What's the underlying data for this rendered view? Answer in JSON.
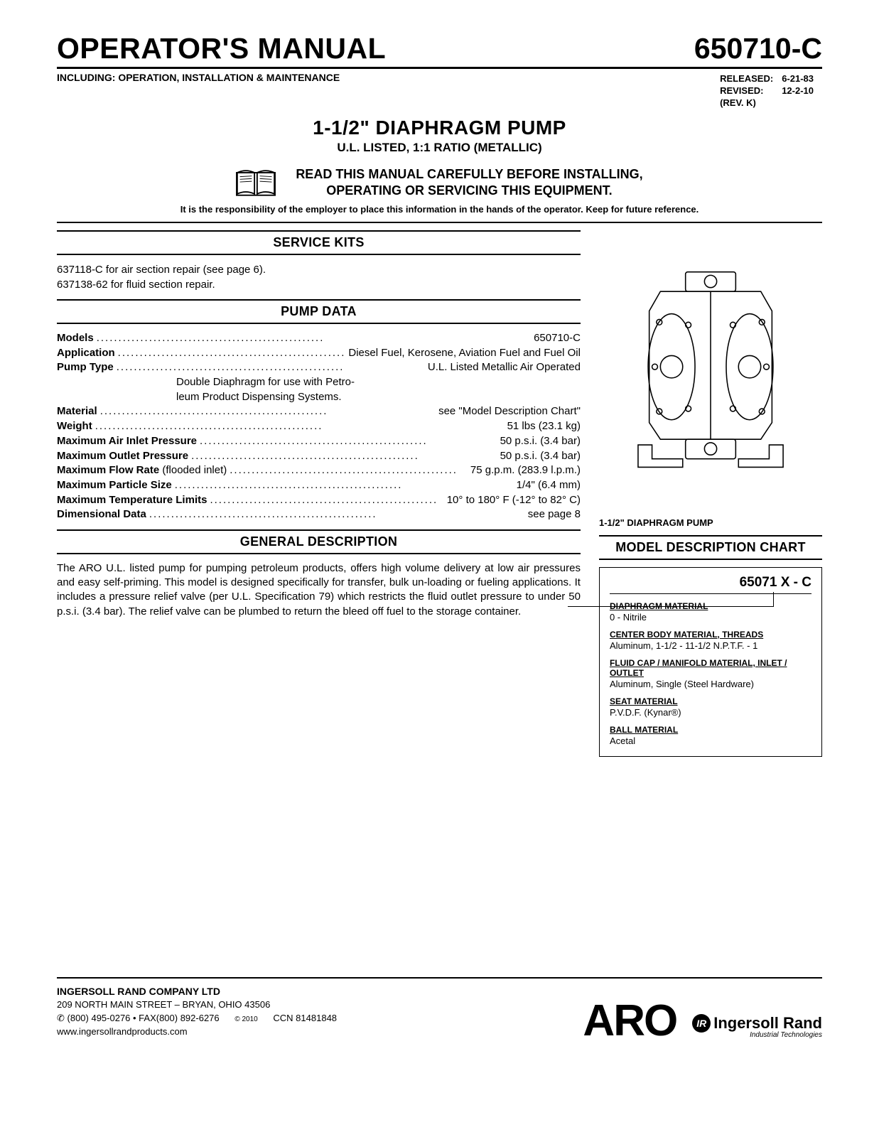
{
  "header": {
    "title": "OPERATOR'S MANUAL",
    "model": "650710-C",
    "subtitle": "INCLUDING: OPERATION, INSTALLATION & MAINTENANCE",
    "released_label": "RELEASED:",
    "released_date": "6-21-83",
    "revised_label": "REVISED:",
    "revised_date": "12-2-10",
    "rev_label": "(REV. K)",
    "product_title": "1-1/2\" DIAPHRAGM PUMP",
    "product_sub": "U.L. LISTED, 1:1 RATIO (METALLIC)",
    "warn_line1": "READ THIS MANUAL CAREFULLY BEFORE INSTALLING,",
    "warn_line2": "OPERATING OR SERVICING THIS EQUIPMENT.",
    "responsibility": "It is the responsibility of the employer to place this information in the hands of the operator. Keep for future reference."
  },
  "service_kits": {
    "heading": "SERVICE KITS",
    "line1": "637118-C for air section repair (see page 6).",
    "line2": "637138-62 for fluid section repair."
  },
  "pump_data": {
    "heading": "PUMP DATA",
    "rows": [
      {
        "label": "Models",
        "value": "650710-C"
      },
      {
        "label": "Application",
        "value": "Diesel Fuel, Kerosene, Aviation Fuel and Fuel Oil"
      },
      {
        "label": "Pump Type",
        "value": "U.L. Listed Metallic Air Operated"
      }
    ],
    "pump_type_cont1": "Double Diaphragm for use with Petro-",
    "pump_type_cont2": "leum Product Dispensing Systems.",
    "rows2": [
      {
        "label": "Material",
        "value": "see \"Model Description Chart\""
      },
      {
        "label": "Weight",
        "value": "51 lbs (23.1 kg)"
      },
      {
        "label": "Maximum Air Inlet Pressure",
        "value": "50 p.s.i. (3.4 bar)"
      },
      {
        "label": "Maximum Outlet Pressure",
        "value": "50 p.s.i. (3.4 bar)"
      },
      {
        "label": "Maximum Flow Rate (flooded inlet)",
        "value": "75 g.p.m. (283.9 l.p.m.)"
      },
      {
        "label": "Maximum Particle Size",
        "value": "1/4\" (6.4 mm)"
      },
      {
        "label": "Maximum Temperature Limits",
        "value": "10° to 180° F (-12° to 82° C)"
      },
      {
        "label": "Dimensional Data",
        "value": "see page 8"
      }
    ],
    "flooded_note": " (flooded inlet)"
  },
  "general": {
    "heading": "GENERAL DESCRIPTION",
    "text": "The ARO U.L. listed pump for pumping petroleum products, offers high volume delivery at low air pressures and easy self-priming. This model is designed specifically for transfer, bulk un-loading or fueling applications. It includes a pressure relief valve (per U.L. Specification 79) which restricts the fluid outlet pressure to under 50 p.s.i. (3.4 bar). The relief valve can be plumbed to return the bleed off fuel to the storage container."
  },
  "figure": {
    "caption": "1-1/2\" DIAPHRAGM PUMP"
  },
  "chart": {
    "heading": "MODEL DESCRIPTION CHART",
    "code": "65071 X - C",
    "sections": [
      {
        "title": "DIAPHRAGM MATERIAL",
        "value": "0  - Nitrile"
      },
      {
        "title": "CENTER BODY MATERIAL, THREADS",
        "value": "Aluminum, 1-1/2 - 11-1/2 N.P.T.F. - 1"
      },
      {
        "title": "FLUID CAP / MANIFOLD MATERIAL, INLET / OUTLET",
        "value": "Aluminum, Single (Steel Hardware)"
      },
      {
        "title": "SEAT MATERIAL",
        "value": "P.V.D.F. (Kynar®)"
      },
      {
        "title": "BALL MATERIAL",
        "value": "Acetal"
      }
    ]
  },
  "footer": {
    "company": "INGERSOLL RAND COMPANY LTD",
    "address": "209 NORTH MAIN STREET – BRYAN, OHIO 43506",
    "phone": "✆ (800) 495-0276 • FAX(800) 892-6276",
    "copyright": "© 2010",
    "ccn": "CCN 81481848",
    "website": "www.ingersollrandproducts.com",
    "aro": "ARO",
    "ir": "Ingersoll Rand",
    "ir_sub": "Industrial Technologies"
  }
}
